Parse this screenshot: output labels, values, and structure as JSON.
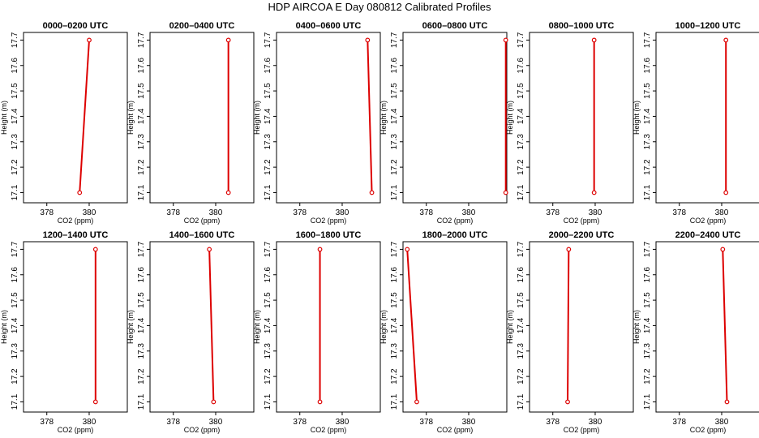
{
  "title": "HDP AIRCOA E  Day 080812  Calibrated Profiles",
  "colors": {
    "profile": "#dd0000",
    "axis": "#000000"
  },
  "chart_data": [
    {
      "type": "line",
      "title": "0000–0200 UTC",
      "xlabel": "CO2 (ppm)",
      "ylabel": "Height (m)",
      "xlim": [
        376.9,
        381.8
      ],
      "ylim": [
        17.06,
        17.73
      ],
      "x_ticks": [
        378,
        380
      ],
      "y_ticks": [
        17.1,
        17.2,
        17.3,
        17.4,
        17.5,
        17.6,
        17.7
      ],
      "x": [
        379.55,
        380.0
      ],
      "y": [
        17.1,
        17.7
      ]
    },
    {
      "type": "line",
      "title": "0200–0400 UTC",
      "xlabel": "CO2 (ppm)",
      "ylabel": "Height (m)",
      "xlim": [
        376.9,
        381.8
      ],
      "ylim": [
        17.06,
        17.73
      ],
      "x_ticks": [
        378,
        380
      ],
      "y_ticks": [
        17.1,
        17.2,
        17.3,
        17.4,
        17.5,
        17.6,
        17.7
      ],
      "x": [
        380.6,
        380.6
      ],
      "y": [
        17.1,
        17.7
      ]
    },
    {
      "type": "line",
      "title": "0400–0600 UTC",
      "xlabel": "CO2 (ppm)",
      "ylabel": "Height (m)",
      "xlim": [
        376.9,
        381.8
      ],
      "ylim": [
        17.06,
        17.73
      ],
      "x_ticks": [
        378,
        380
      ],
      "y_ticks": [
        17.1,
        17.2,
        17.3,
        17.4,
        17.5,
        17.6,
        17.7
      ],
      "x": [
        381.4,
        381.2
      ],
      "y": [
        17.1,
        17.7
      ]
    },
    {
      "type": "line",
      "title": "0600–0800 UTC",
      "xlabel": "CO2 (ppm)",
      "ylabel": "Height (m)",
      "xlim": [
        376.9,
        381.8
      ],
      "ylim": [
        17.06,
        17.73
      ],
      "x_ticks": [
        378,
        380
      ],
      "y_ticks": [
        17.1,
        17.2,
        17.3,
        17.4,
        17.5,
        17.6,
        17.7
      ],
      "x": [
        381.75,
        381.75
      ],
      "y": [
        17.1,
        17.7
      ]
    },
    {
      "type": "line",
      "title": "0800–1000 UTC",
      "xlabel": "CO2 (ppm)",
      "ylabel": "Height (m)",
      "xlim": [
        376.9,
        381.8
      ],
      "ylim": [
        17.06,
        17.73
      ],
      "x_ticks": [
        378,
        380
      ],
      "y_ticks": [
        17.1,
        17.2,
        17.3,
        17.4,
        17.5,
        17.6,
        17.7
      ],
      "x": [
        379.95,
        379.95
      ],
      "y": [
        17.1,
        17.7
      ]
    },
    {
      "type": "line",
      "title": "1000–1200 UTC",
      "xlabel": "CO2 (ppm)",
      "ylabel": "Height (m)",
      "xlim": [
        376.9,
        381.8
      ],
      "ylim": [
        17.06,
        17.73
      ],
      "x_ticks": [
        378,
        380
      ],
      "y_ticks": [
        17.1,
        17.2,
        17.3,
        17.4,
        17.5,
        17.6,
        17.7
      ],
      "x": [
        380.2,
        380.2
      ],
      "y": [
        17.1,
        17.7
      ]
    },
    {
      "type": "line",
      "title": "1200–1400 UTC",
      "xlabel": "CO2 (ppm)",
      "ylabel": "Height (m)",
      "xlim": [
        376.9,
        381.8
      ],
      "ylim": [
        17.06,
        17.73
      ],
      "x_ticks": [
        378,
        380
      ],
      "y_ticks": [
        17.1,
        17.2,
        17.3,
        17.4,
        17.5,
        17.6,
        17.7
      ],
      "x": [
        380.3,
        380.3
      ],
      "y": [
        17.1,
        17.7
      ]
    },
    {
      "type": "line",
      "title": "1400–1600 UTC",
      "xlabel": "CO2 (ppm)",
      "ylabel": "Height (m)",
      "xlim": [
        376.9,
        381.8
      ],
      "ylim": [
        17.06,
        17.73
      ],
      "x_ticks": [
        378,
        380
      ],
      "y_ticks": [
        17.1,
        17.2,
        17.3,
        17.4,
        17.5,
        17.6,
        17.7
      ],
      "x": [
        379.9,
        379.7
      ],
      "y": [
        17.1,
        17.7
      ]
    },
    {
      "type": "line",
      "title": "1600–1800 UTC",
      "xlabel": "CO2 (ppm)",
      "ylabel": "Height (m)",
      "xlim": [
        376.9,
        381.8
      ],
      "ylim": [
        17.06,
        17.73
      ],
      "x_ticks": [
        378,
        380
      ],
      "y_ticks": [
        17.1,
        17.2,
        17.3,
        17.4,
        17.5,
        17.6,
        17.7
      ],
      "x": [
        378.95,
        378.95
      ],
      "y": [
        17.1,
        17.7
      ]
    },
    {
      "type": "line",
      "title": "1800–2000 UTC",
      "xlabel": "CO2 (ppm)",
      "ylabel": "Height (m)",
      "xlim": [
        376.9,
        381.8
      ],
      "ylim": [
        17.06,
        17.73
      ],
      "x_ticks": [
        378,
        380
      ],
      "y_ticks": [
        17.1,
        17.2,
        17.3,
        17.4,
        17.5,
        17.6,
        17.7
      ],
      "x": [
        377.55,
        377.1
      ],
      "y": [
        17.1,
        17.7
      ]
    },
    {
      "type": "line",
      "title": "2000–2200 UTC",
      "xlabel": "CO2 (ppm)",
      "ylabel": "Height (m)",
      "xlim": [
        376.9,
        381.8
      ],
      "ylim": [
        17.06,
        17.73
      ],
      "x_ticks": [
        378,
        380
      ],
      "y_ticks": [
        17.1,
        17.2,
        17.3,
        17.4,
        17.5,
        17.6,
        17.7
      ],
      "x": [
        378.7,
        378.75
      ],
      "y": [
        17.1,
        17.7
      ]
    },
    {
      "type": "line",
      "title": "2200–2400 UTC",
      "xlabel": "CO2 (ppm)",
      "ylabel": "Height (m)",
      "xlim": [
        376.9,
        381.8
      ],
      "ylim": [
        17.06,
        17.73
      ],
      "x_ticks": [
        378,
        380
      ],
      "y_ticks": [
        17.1,
        17.2,
        17.3,
        17.4,
        17.5,
        17.6,
        17.7
      ],
      "x": [
        380.25,
        380.05
      ],
      "y": [
        17.1,
        17.7
      ]
    }
  ]
}
